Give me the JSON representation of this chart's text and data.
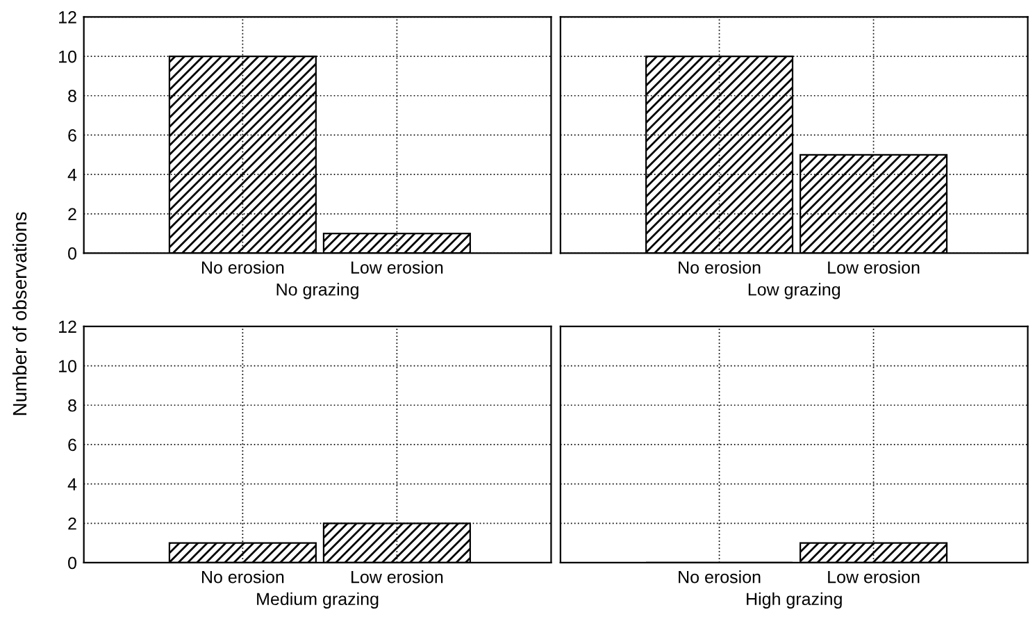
{
  "chart_data": [
    {
      "type": "bar",
      "ylabel": "Number of observations",
      "xlabel": "No grazing",
      "categories": [
        "No erosion",
        "Low erosion"
      ],
      "values": [
        10,
        1
      ],
      "color": "#000000",
      "ylim": [
        0,
        12
      ],
      "yticks": [
        0,
        2,
        4,
        6,
        8,
        10,
        12
      ],
      "grid": true
    },
    {
      "type": "bar",
      "xlabel": "Low grazing",
      "categories": [
        "No erosion",
        "Low erosion"
      ],
      "values": [
        10,
        5
      ],
      "color": "#000000",
      "ylim": [
        0,
        12
      ],
      "yticks": [
        0,
        2,
        4,
        6,
        8,
        10,
        12
      ],
      "grid": true,
      "tick_labels": "x"
    },
    {
      "type": "bar",
      "xlabel": "Medium grazing",
      "categories": [
        "No erosion",
        "Low erosion"
      ],
      "values": [
        1,
        2
      ],
      "color": "#000000",
      "ylim": [
        0,
        12
      ],
      "yticks": [
        0,
        2,
        4,
        6,
        8,
        10,
        12
      ],
      "grid": true
    },
    {
      "type": "bar",
      "xlabel": "High grazing",
      "categories": [
        "No erosion",
        "Low erosion"
      ],
      "values": [
        0,
        1
      ],
      "color": "#000000",
      "ylim": [
        0,
        12
      ],
      "yticks": [
        0,
        2,
        4,
        6,
        8,
        10,
        12
      ],
      "grid": true,
      "tick_labels": "x"
    }
  ]
}
